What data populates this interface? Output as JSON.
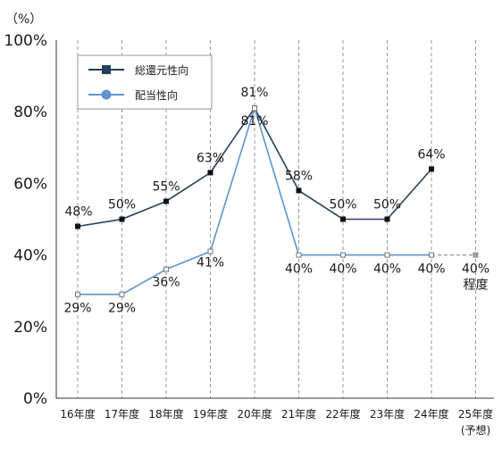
{
  "chart_data": {
    "type": "line",
    "y_unit_label": "（%）",
    "ylim": [
      0,
      100
    ],
    "yticks": [
      {
        "value": 0,
        "label": "0%"
      },
      {
        "value": 20,
        "label": "20%"
      },
      {
        "value": 40,
        "label": "40%"
      },
      {
        "value": 60,
        "label": "60%"
      },
      {
        "value": 80,
        "label": "80%"
      },
      {
        "value": 100,
        "label": "100%"
      }
    ],
    "categories": [
      "16年度",
      "17年度",
      "18年度",
      "19年度",
      "20年度",
      "21年度",
      "22年度",
      "23年度",
      "24年度",
      "25年度"
    ],
    "category_notes": [
      "",
      "",
      "",
      "",
      "",
      "",
      "",
      "",
      "",
      "(予想)"
    ],
    "vertical_grid": "dashed",
    "horizontal_grid": false,
    "legend_position": "top-left",
    "series": [
      {
        "name": "総還元性向",
        "color": "#243f5c",
        "marker": "square-filled",
        "values": [
          48,
          50,
          55,
          63,
          81,
          58,
          50,
          50,
          64,
          null
        ],
        "labels": [
          "48%",
          "50%",
          "55%",
          "63%",
          "81%",
          "58%",
          "50%",
          "50%",
          "64%",
          ""
        ],
        "label_position": "above"
      },
      {
        "name": "配当性向",
        "color": "#5e95cc",
        "marker": "square-open",
        "values": [
          29,
          29,
          36,
          41,
          81,
          40,
          40,
          40,
          40,
          40
        ],
        "labels": [
          "29%",
          "29%",
          "36%",
          "41%",
          "81%",
          "40%",
          "40%",
          "40%",
          "40%",
          "40%"
        ],
        "label_position": "below",
        "forecast_from_index": 8,
        "forecast_color": "#9a9a9a",
        "forecast_note": "程度"
      }
    ]
  }
}
